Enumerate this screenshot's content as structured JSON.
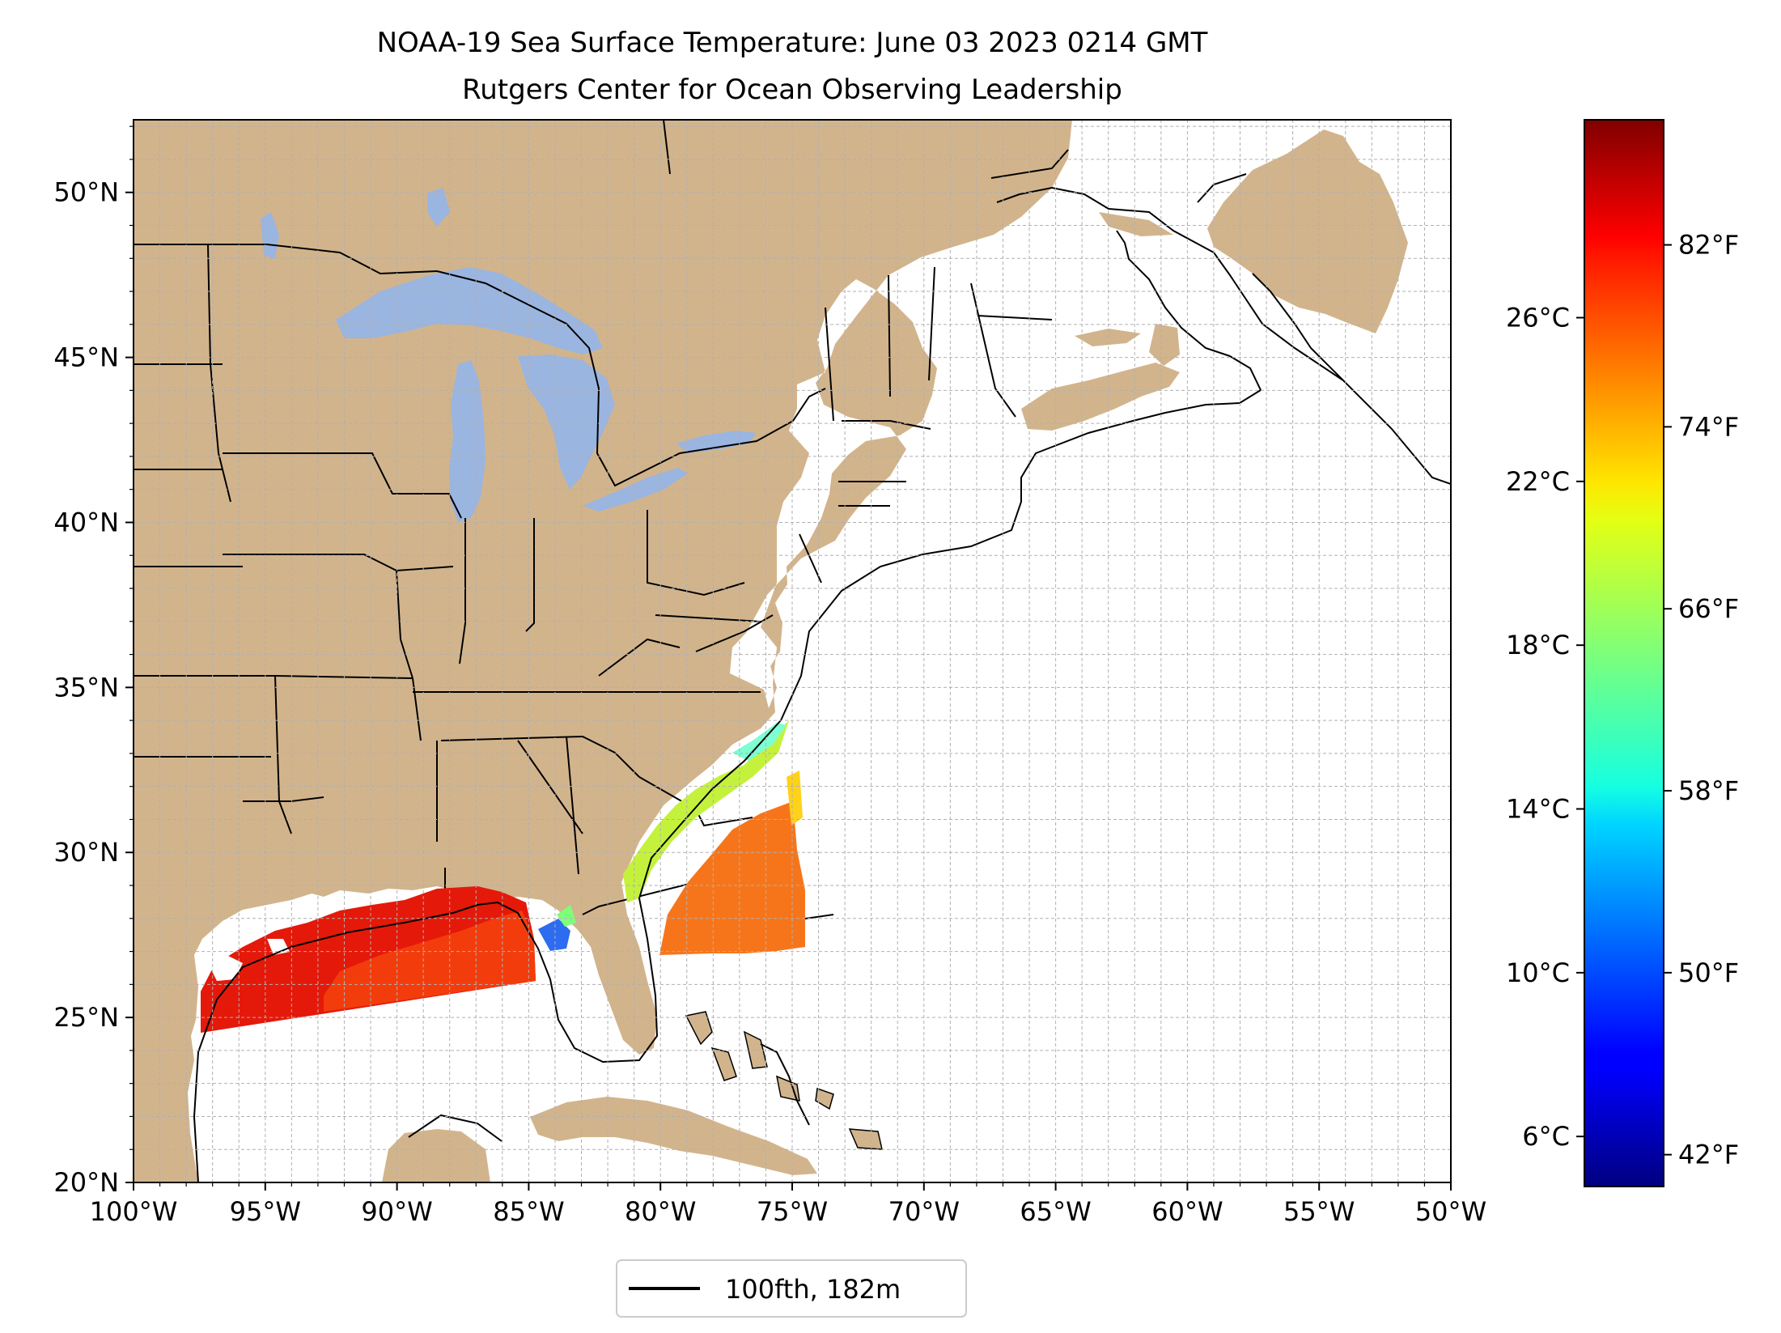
{
  "title": {
    "line1": "NOAA-19 Sea Surface Temperature: June 03 2023 0214 GMT",
    "line2": "Rutgers Center for Ocean Observing Leadership"
  },
  "map": {
    "lon_range": [
      -100,
      -50
    ],
    "lat_range": [
      20,
      52.2
    ],
    "x_ticks": [
      {
        "lon": -100,
        "label": "100°W"
      },
      {
        "lon": -95,
        "label": "95°W"
      },
      {
        "lon": -90,
        "label": "90°W"
      },
      {
        "lon": -85,
        "label": "85°W"
      },
      {
        "lon": -80,
        "label": "80°W"
      },
      {
        "lon": -75,
        "label": "75°W"
      },
      {
        "lon": -70,
        "label": "70°W"
      },
      {
        "lon": -65,
        "label": "65°W"
      },
      {
        "lon": -60,
        "label": "60°W"
      },
      {
        "lon": -55,
        "label": "55°W"
      },
      {
        "lon": -50,
        "label": "50°W"
      }
    ],
    "y_ticks": [
      {
        "lat": 20,
        "label": "20°N"
      },
      {
        "lat": 25,
        "label": "25°N"
      },
      {
        "lat": 30,
        "label": "30°N"
      },
      {
        "lat": 35,
        "label": "35°N"
      },
      {
        "lat": 40,
        "label": "40°N"
      },
      {
        "lat": 45,
        "label": "45°N"
      },
      {
        "lat": 50,
        "label": "50°N"
      }
    ],
    "grid": "dashed, 1° spacing",
    "colors": {
      "land": "#d2b48c",
      "lakes": "#9ab5e0",
      "ocean": "#ffffff",
      "borders": "#000000",
      "isobath": "#000000",
      "grid": "#b0b0b0"
    }
  },
  "legend": {
    "label": "100fth, 182m",
    "placement": "below map, centered"
  },
  "colorbar": {
    "colormap": "jet",
    "range_f": [
      40.6,
      87.5
    ],
    "celsius_ticks": [
      {
        "value_c": 6,
        "label": "6°C"
      },
      {
        "value_c": 10,
        "label": "10°C"
      },
      {
        "value_c": 14,
        "label": "14°C"
      },
      {
        "value_c": 18,
        "label": "18°C"
      },
      {
        "value_c": 22,
        "label": "22°C"
      },
      {
        "value_c": 26,
        "label": "26°C"
      }
    ],
    "fahrenheit_ticks": [
      {
        "value_f": 42,
        "label": "42°F"
      },
      {
        "value_f": 50,
        "label": "50°F"
      },
      {
        "value_f": 58,
        "label": "58°F"
      },
      {
        "value_f": 66,
        "label": "66°F"
      },
      {
        "value_f": 74,
        "label": "74°F"
      },
      {
        "value_f": 82,
        "label": "82°F"
      }
    ]
  },
  "sst_observations": [
    {
      "region": "Gulf of Mexico",
      "approx_temp_f": 82,
      "color": "#e4190a"
    },
    {
      "region": "Gulf of Mexico (central)",
      "approx_temp_f": 80,
      "color": "#f33c0c"
    },
    {
      "region": "Atlantic offshore Georgia / Carolinas",
      "approx_temp_f": 77,
      "color": "#f7751a"
    },
    {
      "region": "Southeast US nearshore",
      "approx_temp_f": 66,
      "color": "#c4f23c"
    }
  ]
}
